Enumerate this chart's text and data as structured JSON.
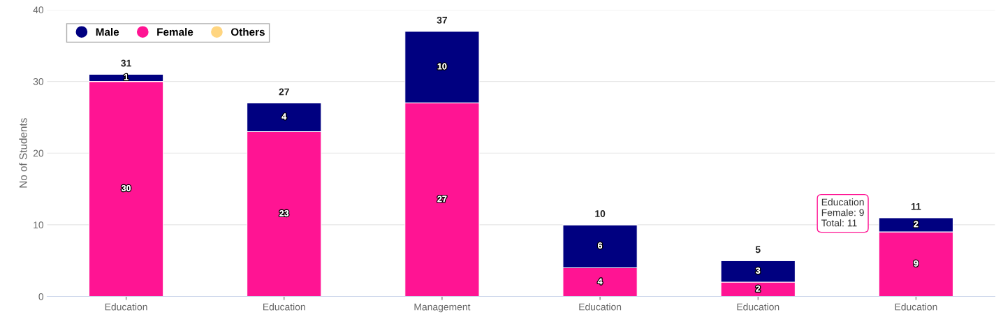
{
  "chart_data": {
    "type": "bar",
    "stacked": true,
    "ylabel": "No of Students",
    "categories": [
      "Education",
      "Education",
      "Management",
      "Education",
      "Education",
      "Education"
    ],
    "series": [
      {
        "name": "Female",
        "color": "#ff1493",
        "values": [
          30,
          23,
          27,
          4,
          2,
          9
        ]
      },
      {
        "name": "Male",
        "color": "#000080",
        "values": [
          1,
          4,
          10,
          6,
          3,
          2
        ]
      },
      {
        "name": "Others",
        "color": "#ffd580",
        "values": [
          null,
          null,
          null,
          null,
          null,
          null
        ]
      }
    ],
    "ylim": [
      0,
      40
    ],
    "yticks": [
      0,
      10,
      20,
      30,
      40
    ],
    "grid": "y",
    "legend": "top left",
    "data_labels": true,
    "totals": [
      "31",
      "27",
      "37",
      "10",
      "5",
      "11"
    ],
    "annotations": [
      "Education\nFemale: 9\nTotal: 11"
    ]
  }
}
